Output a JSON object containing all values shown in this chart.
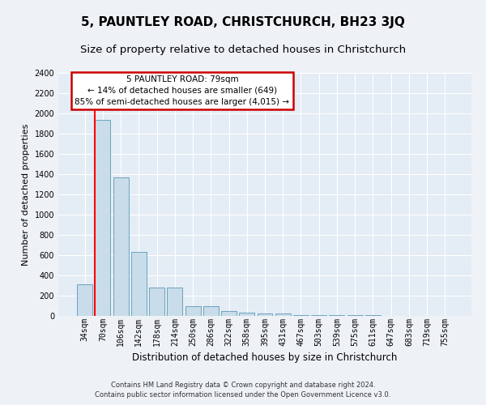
{
  "title": "5, PAUNTLEY ROAD, CHRISTCHURCH, BH23 3JQ",
  "subtitle": "Size of property relative to detached houses in Christchurch",
  "xlabel": "Distribution of detached houses by size in Christchurch",
  "ylabel": "Number of detached properties",
  "categories": [
    "34sqm",
    "70sqm",
    "106sqm",
    "142sqm",
    "178sqm",
    "214sqm",
    "250sqm",
    "286sqm",
    "322sqm",
    "358sqm",
    "395sqm",
    "431sqm",
    "467sqm",
    "503sqm",
    "539sqm",
    "575sqm",
    "611sqm",
    "647sqm",
    "683sqm",
    "719sqm",
    "755sqm"
  ],
  "values": [
    310,
    1940,
    1370,
    630,
    280,
    280,
    95,
    95,
    45,
    35,
    25,
    25,
    10,
    5,
    5,
    5,
    5,
    3,
    2,
    2,
    2
  ],
  "bar_color": "#c8dce9",
  "bar_edge_color": "#5a9ab8",
  "red_line_index": 1,
  "annotation_title": "5 PAUNTLEY ROAD: 79sqm",
  "annotation_line1": "← 14% of detached houses are smaller (649)",
  "annotation_line2": "85% of semi-detached houses are larger (4,015) →",
  "annotation_box_facecolor": "#ffffff",
  "annotation_box_edgecolor": "#cc0000",
  "ylim_max": 2400,
  "ytick_step": 200,
  "footnote1": "Contains HM Land Registry data © Crown copyright and database right 2024.",
  "footnote2": "Contains public sector information licensed under the Open Government Licence v3.0.",
  "fig_facecolor": "#eef2f7",
  "plot_facecolor": "#e4ecf5",
  "grid_color": "#ffffff",
  "title_fontsize": 11,
  "subtitle_fontsize": 9.5,
  "xlabel_fontsize": 8.5,
  "ylabel_fontsize": 8,
  "tick_fontsize": 7,
  "annotation_fontsize": 7.5,
  "footnote_fontsize": 6
}
